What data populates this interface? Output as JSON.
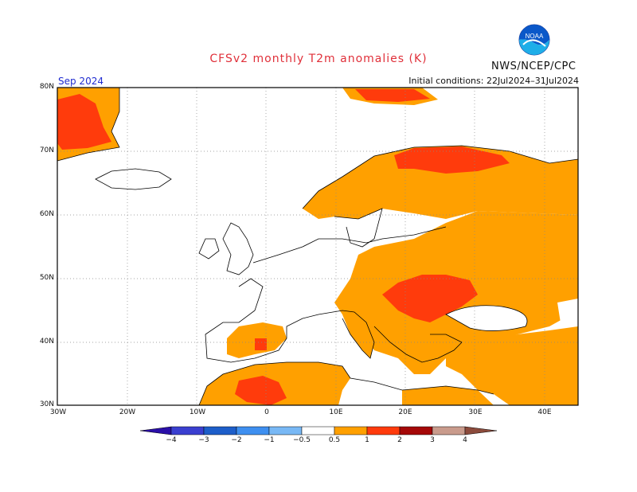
{
  "header": {
    "title": "CFSv2 monthly T2m anomalies (K)",
    "agency": "NWS/NCEP/CPC",
    "logo_text": "NOAA",
    "month": "Sep 2024",
    "initial_conditions": "Initial conditions: 22Jul2024–31Jul2024"
  },
  "map": {
    "lat_labels": [
      "80N",
      "70N",
      "60N",
      "50N",
      "40N",
      "30N"
    ],
    "lon_labels": [
      "30W",
      "20W",
      "10W",
      "0",
      "10E",
      "20E",
      "30E",
      "40E"
    ],
    "region": "Europe, 30W–45E, 30N–80N"
  },
  "colorbar": {
    "labels": [
      "−4",
      "−3",
      "−2",
      "−1",
      "−0.5",
      "0.5",
      "1",
      "2",
      "3",
      "4"
    ],
    "colors": [
      "#2a0fa8",
      "#3a3fd0",
      "#1d5ec9",
      "#3e8ff0",
      "#78b8f5",
      "#ffffff",
      "#ffa000",
      "#ff3b0c",
      "#a50808",
      "#c99b8c",
      "#8c4b3c"
    ]
  },
  "legend_colors": {
    "orange": "#ffa000",
    "red": "#ff3b0c",
    "darkred": "#a50808"
  }
}
